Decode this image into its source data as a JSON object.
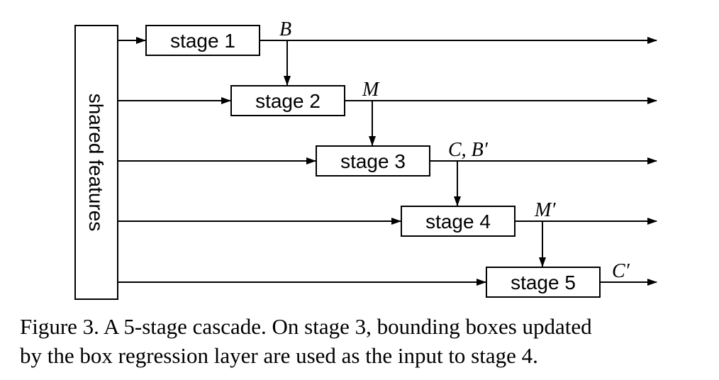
{
  "diagram": {
    "shared_label": "shared features",
    "stages": [
      {
        "label": "stage 1",
        "output": "B"
      },
      {
        "label": "stage 2",
        "output": "M"
      },
      {
        "label": "stage 3",
        "output": "C, B′"
      },
      {
        "label": "stage 4",
        "output": "M′"
      },
      {
        "label": "stage 5",
        "output": "C′"
      }
    ]
  },
  "caption": {
    "line1": "Figure 3. A 5-stage cascade. On stage 3, bounding boxes updated",
    "line2": "by the box regression layer are used as the input to stage 4."
  }
}
